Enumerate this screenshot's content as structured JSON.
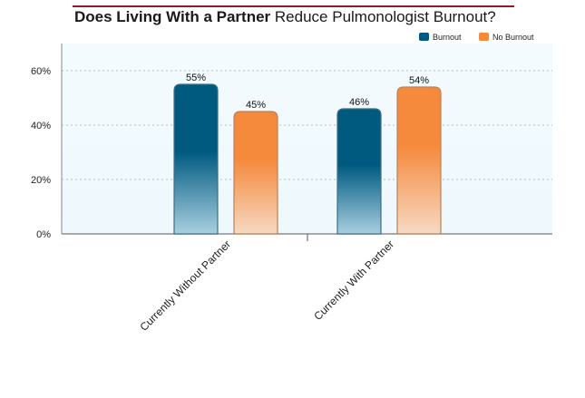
{
  "colors": {
    "burnout": "#005a80",
    "no_burnout": "#f58a3d",
    "title_rule": "#8b1a2b",
    "plot_bg": "#eef8fd"
  },
  "chart_data": {
    "type": "bar",
    "title_bold": "Does Living With a Partner",
    "title_rest": "Reduce Pulmonologist Burnout?",
    "categories": [
      "Currently Without Partner",
      "Currently With Partner"
    ],
    "series": [
      {
        "name": "Burnout",
        "values": [
          55,
          46
        ]
      },
      {
        "name": "No Burnout",
        "values": [
          45,
          54
        ]
      }
    ],
    "data_labels": [
      [
        "55%",
        "46%"
      ],
      [
        "45%",
        "54%"
      ]
    ],
    "yticks": [
      "0%",
      "20%",
      "40%",
      "60%"
    ],
    "ylim": [
      0,
      70
    ],
    "grid": true,
    "legend_position": "top-right",
    "xlabel": "",
    "ylabel": ""
  }
}
